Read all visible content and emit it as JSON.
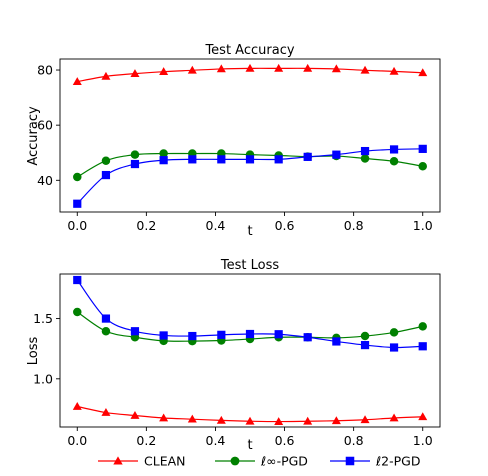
{
  "figure": {
    "legend": {
      "placement": "bottom-center",
      "entries": [
        {
          "name": "CLEAN",
          "color": "#ff0000",
          "marker": "triangle"
        },
        {
          "name": "ℓ∞-PGD",
          "color": "#008000",
          "marker": "circle"
        },
        {
          "name": "ℓ2-PGD",
          "color": "#0000ff",
          "marker": "square"
        }
      ]
    }
  },
  "chart_data": [
    {
      "type": "line",
      "title": "Test Accuracy",
      "xlabel": "t",
      "ylabel": "Accuracy",
      "x": [
        0.0,
        0.083,
        0.167,
        0.25,
        0.333,
        0.417,
        0.5,
        0.583,
        0.667,
        0.75,
        0.833,
        0.917,
        1.0
      ],
      "xlim": [
        -0.05,
        1.05
      ],
      "ylim": [
        28.5,
        84
      ],
      "xticks": [
        0.0,
        0.2,
        0.4,
        0.6,
        0.8,
        1.0
      ],
      "xtick_labels": [
        "0.0",
        "0.2",
        "0.4",
        "0.6",
        "0.8",
        "1.0"
      ],
      "yticks": [
        40,
        60,
        80
      ],
      "ytick_labels": [
        "40",
        "60",
        "80"
      ],
      "grid": false,
      "series": [
        {
          "name": "CLEAN",
          "color": "#ff0000",
          "marker": "triangle",
          "values": [
            75.8,
            77.7,
            78.7,
            79.4,
            79.9,
            80.4,
            80.6,
            80.6,
            80.6,
            80.4,
            79.9,
            79.5,
            79.0
          ]
        },
        {
          "name": "ℓ∞-PGD",
          "color": "#008000",
          "marker": "circle",
          "values": [
            41.2,
            47.1,
            49.3,
            49.7,
            49.7,
            49.7,
            49.3,
            49.0,
            48.6,
            48.8,
            47.9,
            46.9,
            45.1
          ]
        },
        {
          "name": "ℓ2-PGD",
          "color": "#0000ff",
          "marker": "square",
          "values": [
            31.5,
            41.9,
            45.9,
            47.3,
            47.6,
            47.6,
            47.6,
            47.6,
            48.5,
            49.3,
            50.6,
            51.2,
            51.4
          ]
        }
      ]
    },
    {
      "type": "line",
      "title": "Test Loss",
      "xlabel": "t",
      "ylabel": "Loss",
      "x": [
        0.0,
        0.083,
        0.167,
        0.25,
        0.333,
        0.417,
        0.5,
        0.583,
        0.667,
        0.75,
        0.833,
        0.917,
        1.0
      ],
      "xlim": [
        -0.05,
        1.05
      ],
      "ylim": [
        0.6,
        1.87
      ],
      "xticks": [
        0.0,
        0.2,
        0.4,
        0.6,
        0.8,
        1.0
      ],
      "xtick_labels": [
        "0.0",
        "0.2",
        "0.4",
        "0.6",
        "0.8",
        "1.0"
      ],
      "yticks": [
        1.0,
        1.5
      ],
      "ytick_labels": [
        "1.0",
        "1.5"
      ],
      "grid": false,
      "series": [
        {
          "name": "CLEAN",
          "color": "#ff0000",
          "marker": "triangle",
          "values": [
            0.77,
            0.72,
            0.695,
            0.675,
            0.665,
            0.655,
            0.648,
            0.645,
            0.648,
            0.652,
            0.66,
            0.675,
            0.685
          ]
        },
        {
          "name": "ℓ∞-PGD",
          "color": "#008000",
          "marker": "circle",
          "values": [
            1.555,
            1.395,
            1.345,
            1.315,
            1.313,
            1.318,
            1.33,
            1.345,
            1.345,
            1.34,
            1.355,
            1.385,
            1.435
          ]
        },
        {
          "name": "ℓ2-PGD",
          "color": "#0000ff",
          "marker": "square",
          "values": [
            1.82,
            1.5,
            1.395,
            1.36,
            1.355,
            1.365,
            1.372,
            1.37,
            1.345,
            1.31,
            1.28,
            1.26,
            1.27
          ]
        }
      ]
    }
  ]
}
